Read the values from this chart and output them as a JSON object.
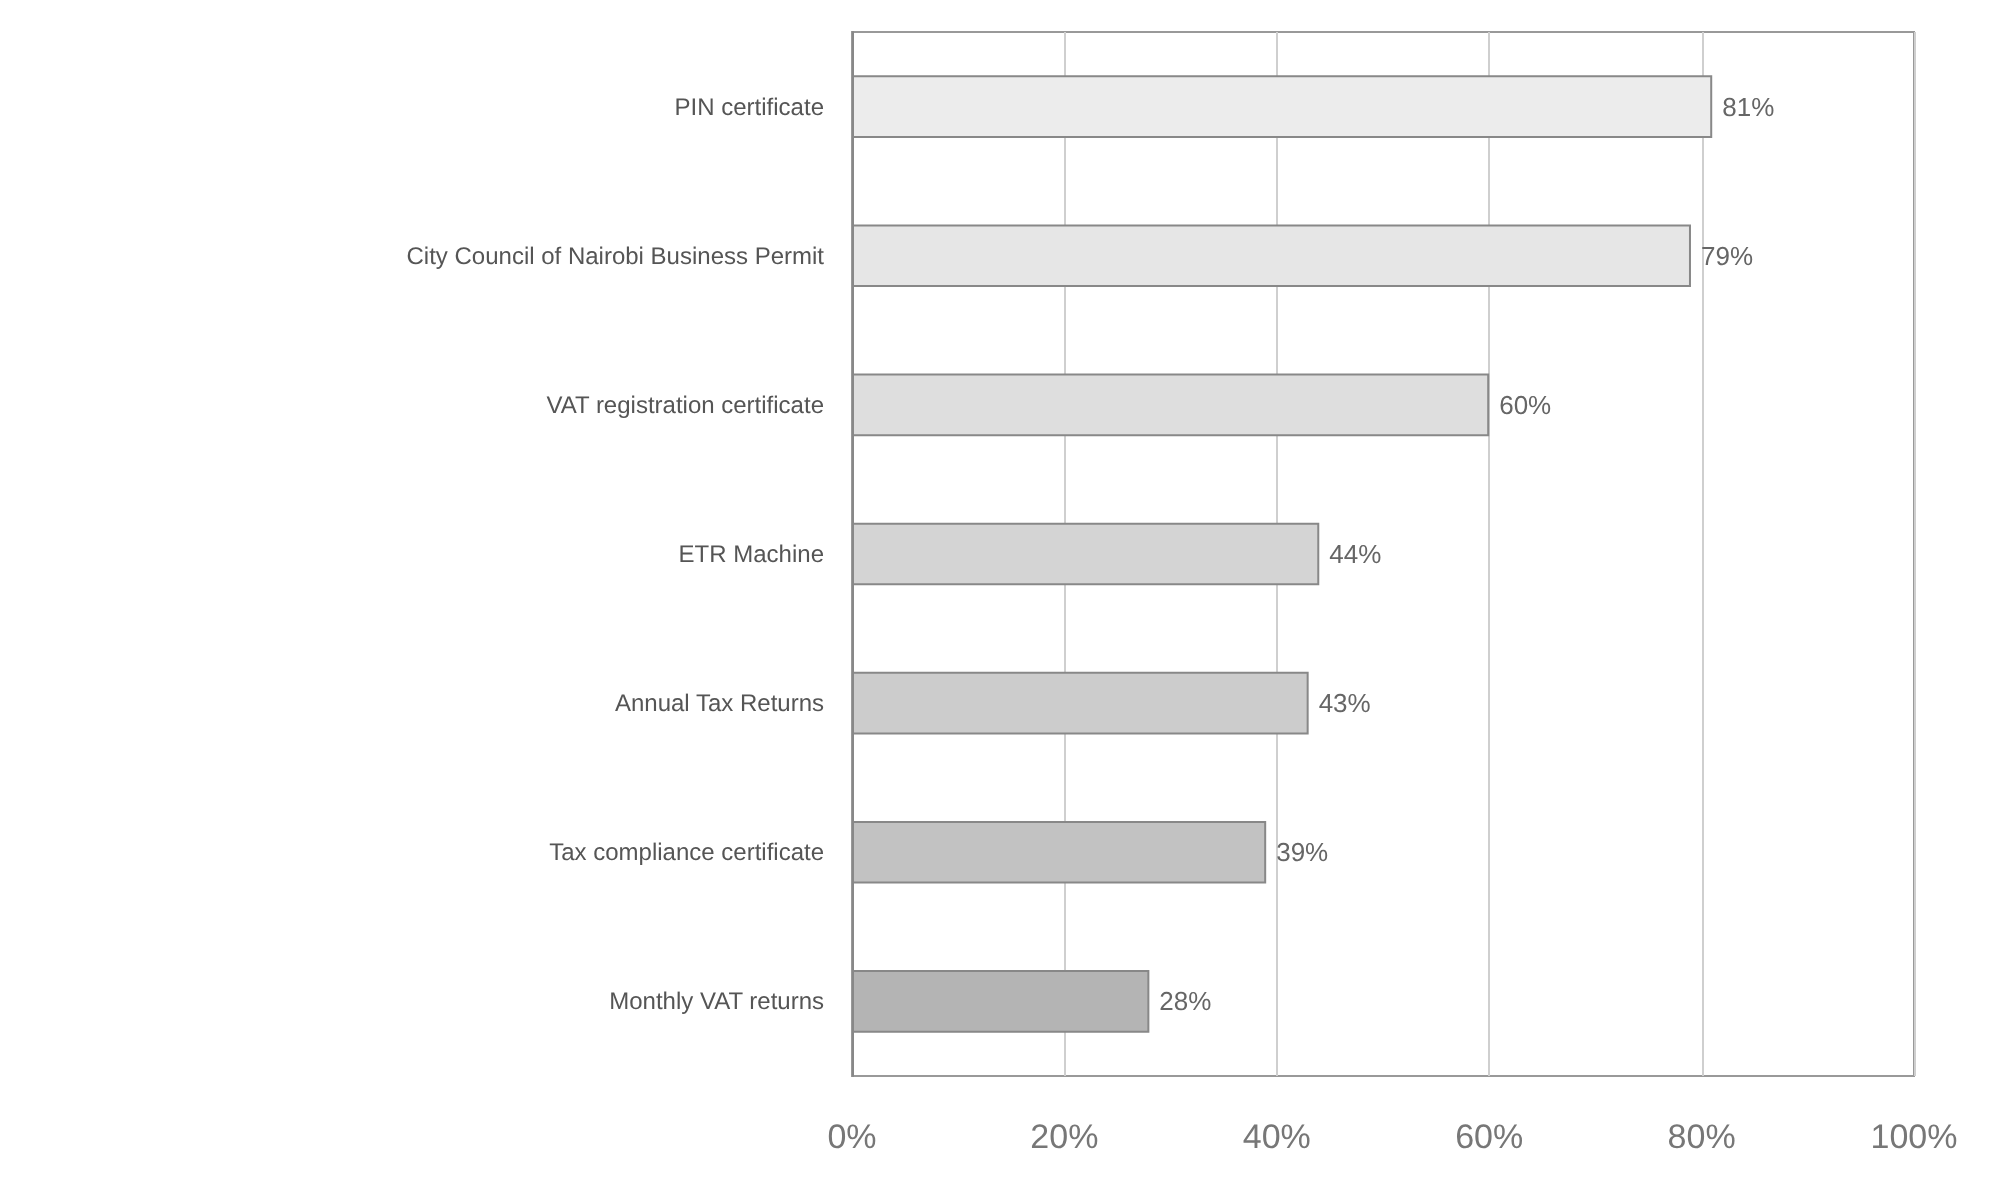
{
  "chart_data": {
    "type": "bar",
    "orientation": "horizontal",
    "categories": [
      "PIN certificate",
      "City Council of Nairobi Business Permit",
      "VAT registration certificate",
      "ETR Machine",
      "Annual Tax Returns",
      "Tax compliance certificate",
      "Monthly VAT returns"
    ],
    "values": [
      81,
      79,
      60,
      44,
      43,
      39,
      28
    ],
    "value_labels": [
      "81%",
      "79%",
      "60%",
      "44%",
      "43%",
      "39%",
      "28%"
    ],
    "colors": [
      "#ececec",
      "#e6e6e6",
      "#dedede",
      "#d4d4d4",
      "#cccccc",
      "#c2c2c2",
      "#b4b4b4"
    ],
    "xlim": [
      0,
      100
    ],
    "xticks": [
      {
        "value": 0,
        "label": "0%"
      },
      {
        "value": 20,
        "label": "20%"
      },
      {
        "value": 40,
        "label": "40%"
      },
      {
        "value": 60,
        "label": "60%"
      },
      {
        "value": 80,
        "label": "80%"
      },
      {
        "value": 100,
        "label": "100%"
      }
    ],
    "grid": "x"
  }
}
